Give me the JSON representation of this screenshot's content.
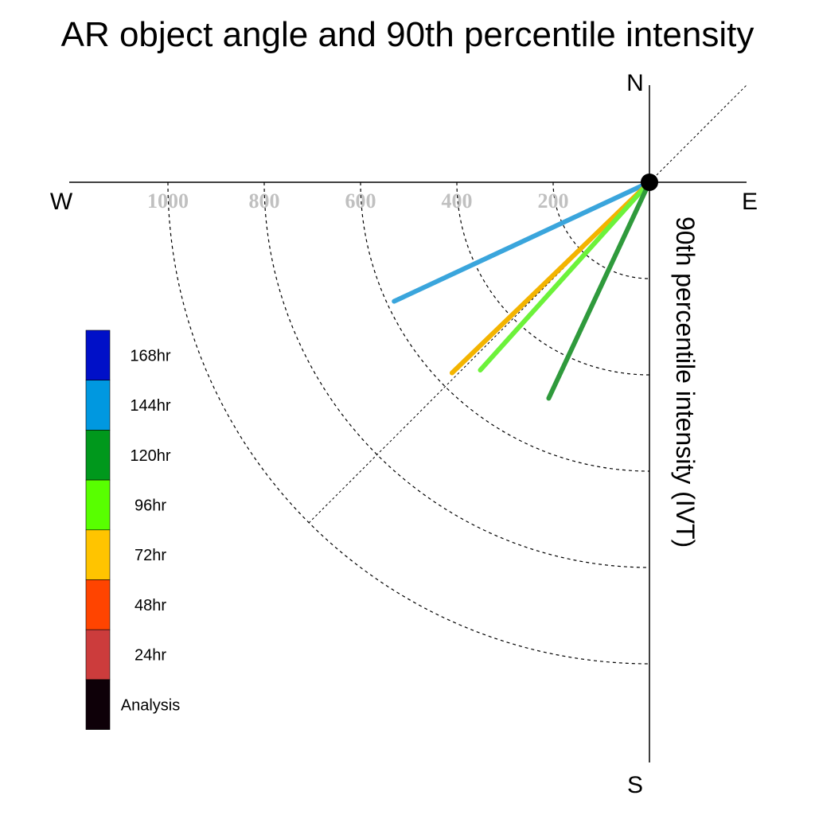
{
  "chart_data": {
    "type": "polar_vector",
    "title": "AR object angle and 90th percentile intensity",
    "axis_label": "90th percentile intensity (IVT)",
    "compass": {
      "north": "N",
      "east": "E",
      "south": "S",
      "west": "W"
    },
    "rings": [
      200,
      400,
      600,
      800,
      1000
    ],
    "ring_labels": [
      "200",
      "400",
      "600",
      "800",
      "1000"
    ],
    "rmax": 1200,
    "reference_angle_deg": 225,
    "legend": [
      {
        "label": "168hr",
        "color": "#0010c8"
      },
      {
        "label": "144hr",
        "color": "#0098e0"
      },
      {
        "label": "120hr",
        "color": "#00981c"
      },
      {
        "label": "96hr",
        "color": "#58ff00"
      },
      {
        "label": "72hr",
        "color": "#ffc400"
      },
      {
        "label": "48hr",
        "color": "#ff4400"
      },
      {
        "label": "24hr",
        "color": "#cc3c3c"
      },
      {
        "label": "Analysis",
        "color": "#0e0008"
      }
    ],
    "vectors": [
      {
        "name": "144hr",
        "direction_deg": 245,
        "intensity": 585,
        "color": "#3aa5dc"
      },
      {
        "name": "72hr",
        "direction_deg": 226,
        "intensity": 570,
        "color": "#f3b400"
      },
      {
        "name": "96hr",
        "direction_deg": 222,
        "intensity": 525,
        "color": "#6cf23a"
      },
      {
        "name": "120hr",
        "direction_deg": 205,
        "intensity": 495,
        "color": "#2f9a3c"
      }
    ]
  }
}
